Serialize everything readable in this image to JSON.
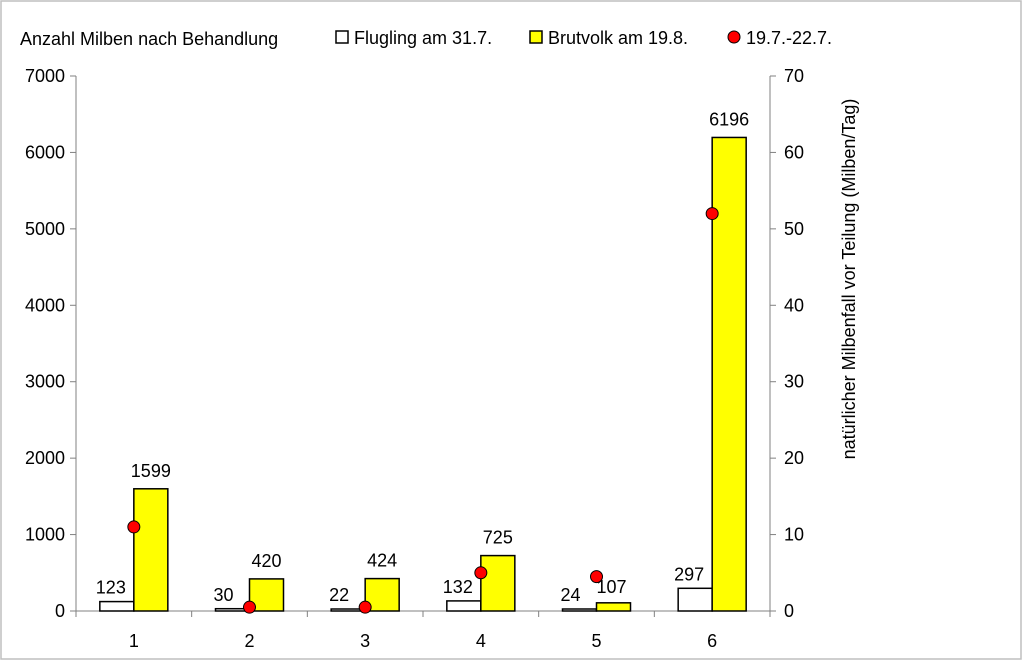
{
  "chart_data": {
    "type": "bar",
    "title": "Anzahl Milben nach Behandlung",
    "categories": [
      "1",
      "2",
      "3",
      "4",
      "5",
      "6"
    ],
    "series": [
      {
        "name": "Flugling am 31.7.",
        "type": "bar",
        "axis": "left",
        "color": "#ffffff",
        "values": [
          123,
          30,
          22,
          132,
          24,
          297
        ]
      },
      {
        "name": "Brutvolk am 19.8.",
        "type": "bar",
        "axis": "left",
        "color": "#ffff00",
        "values": [
          1599,
          420,
          424,
          725,
          107,
          6196
        ]
      },
      {
        "name": "19.7.-22.7.",
        "type": "scatter",
        "axis": "right",
        "color": "#ff0000",
        "values": [
          11,
          0.5,
          0.5,
          5,
          4.5,
          52
        ]
      }
    ],
    "y_left": {
      "label": "",
      "lim": [
        0,
        7000
      ],
      "ticks": [
        0,
        1000,
        2000,
        3000,
        4000,
        5000,
        6000,
        7000
      ]
    },
    "y_right": {
      "label": "natürlicher Milbenfall vor Teilung (Milben/Tag)",
      "lim": [
        0,
        70
      ],
      "ticks": [
        0,
        10,
        20,
        30,
        40,
        50,
        60,
        70
      ]
    },
    "xlabel": "",
    "grid": false,
    "legend_position": "top"
  }
}
